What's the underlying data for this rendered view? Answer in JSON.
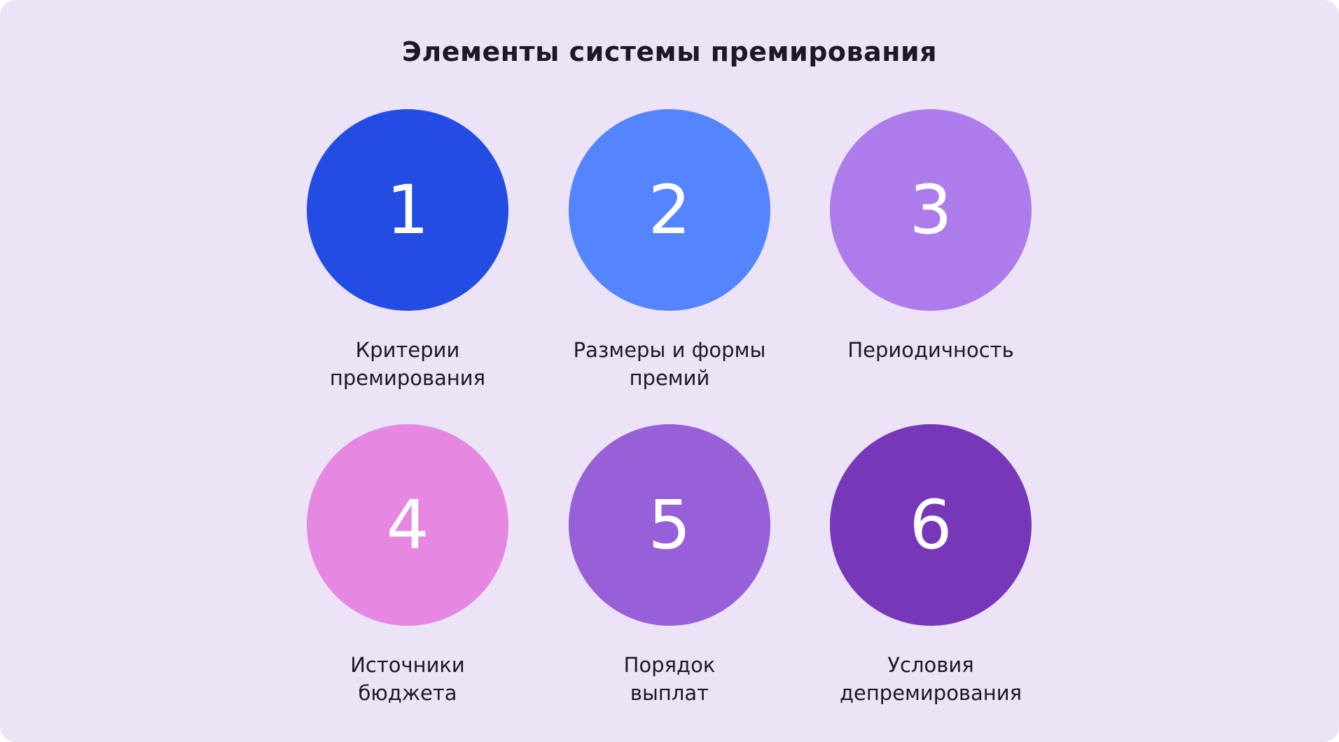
{
  "title": "Элементы системы премирования",
  "items": [
    {
      "number": "1",
      "label": "Критерии\nпремирования",
      "color": "#234de2"
    },
    {
      "number": "2",
      "label": "Размеры и формы\nпремий",
      "color": "#5484fe"
    },
    {
      "number": "3",
      "label": "Периодичность",
      "color": "#ae7cea"
    },
    {
      "number": "4",
      "label": "Источники\nбюджета",
      "color": "#e687e1"
    },
    {
      "number": "5",
      "label": "Порядок\nвыплат",
      "color": "#975fd8"
    },
    {
      "number": "6",
      "label": "Условия\nдепремирования",
      "color": "#7638b9"
    }
  ]
}
